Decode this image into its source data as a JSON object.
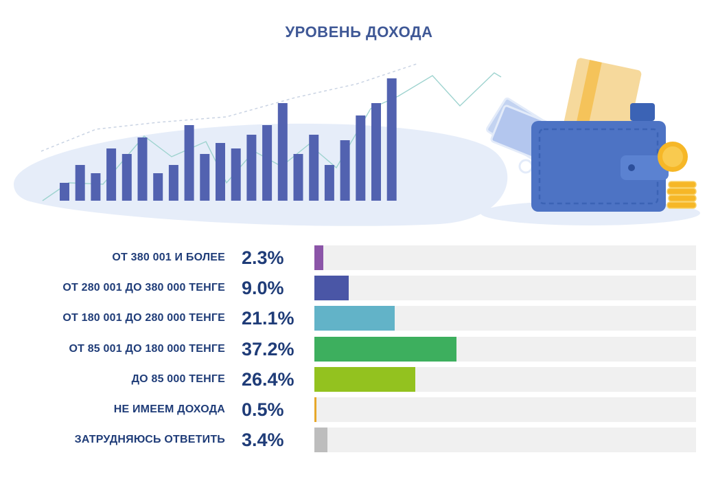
{
  "chart_data": {
    "type": "bar",
    "orientation": "horizontal",
    "title": "УРОВЕНЬ ДОХОДА",
    "unit": "%",
    "xlim": [
      0,
      100
    ],
    "categories": [
      "ОТ 380 001 И БОЛЕЕ",
      "ОТ 280 001 ДО 380 000 ТЕНГЕ",
      "ОТ 180 001 ДО 280 000 ТЕНГЕ",
      "ОТ 85 001 ДО 180 000 ТЕНГЕ",
      "ДО 85 000 ТЕНГЕ",
      "НЕ ИМЕЕМ ДОХОДА",
      "ЗАТРУДНЯЮСЬ ОТВЕТИТЬ"
    ],
    "values": [
      2.3,
      9.0,
      21.1,
      37.2,
      26.4,
      0.5,
      3.4
    ],
    "value_labels": [
      "2.3%",
      "9.0%",
      "21.1%",
      "37.2%",
      "26.4%",
      "0.5%",
      "3.4%"
    ],
    "colors": [
      "#8b55a8",
      "#4a56a6",
      "#62b3c8",
      "#3daf5e",
      "#93c21f",
      "#e7a82a",
      "#bdbdbd"
    ],
    "track_color": "#f0f0f0",
    "text_color": "#1f3c78"
  },
  "illustration": {
    "bar_color": "#5262b0",
    "wallet_color": "#4d73c4",
    "card_color": "#f5c35a",
    "coin_color": "#f6b727",
    "banknote_color": "#c3d3f1",
    "icons": [
      "bar-chart-illustration",
      "wallet-icon",
      "credit-card-icon",
      "banknote-icon",
      "coin-stack-icon"
    ]
  }
}
